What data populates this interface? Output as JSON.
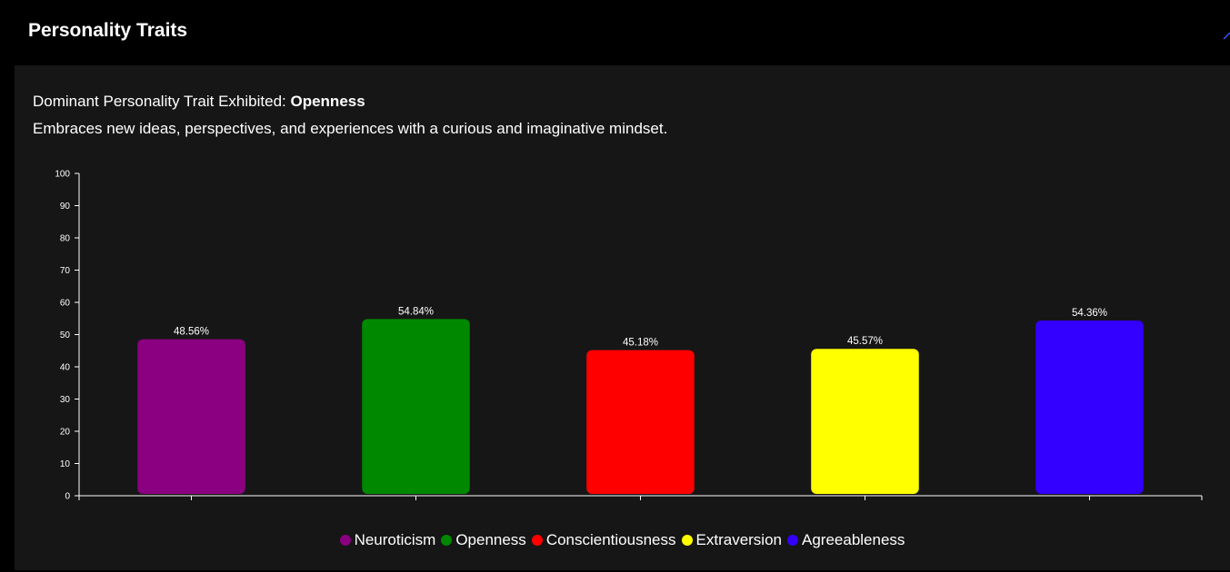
{
  "header": {
    "title": "Personality Traits"
  },
  "summary": {
    "dominant_prefix": "Dominant Personality Trait Exhibited:",
    "dominant_trait": "Openness",
    "description": "Embraces new ideas, perspectives, and experiences with a curious and imaginative mindset."
  },
  "chart_data": {
    "type": "bar",
    "categories": [
      "Neuroticism",
      "Openness",
      "Conscientiousness",
      "Extraversion",
      "Agreeableness"
    ],
    "values": [
      48.56,
      54.84,
      45.18,
      45.57,
      54.36
    ],
    "value_labels": [
      "48.56%",
      "54.84%",
      "45.18%",
      "45.57%",
      "54.36%"
    ],
    "colors": [
      "#8b0080",
      "#008800",
      "#ff0000",
      "#ffff00",
      "#3300ff"
    ],
    "ylim": [
      0,
      100
    ],
    "y_ticks": [
      "0",
      "10",
      "20",
      "30",
      "40",
      "50",
      "60",
      "70",
      "80",
      "90",
      "100"
    ],
    "grid": false,
    "legend_position": "bottom"
  }
}
